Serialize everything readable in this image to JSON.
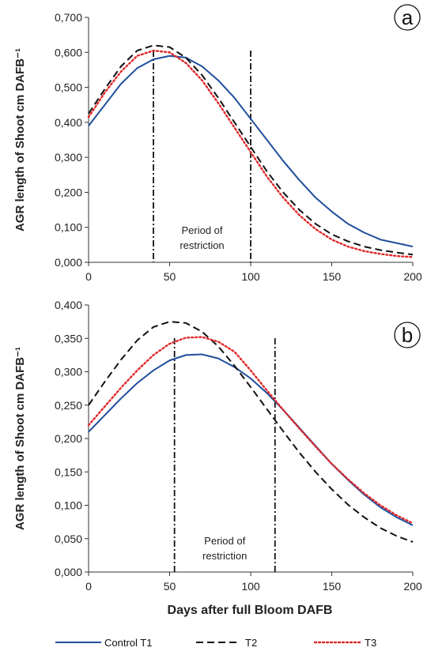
{
  "chart_data": [
    {
      "type": "line",
      "panel_label": "a",
      "ylabel": "AGR length of  Shoot cm DAFB⁻¹",
      "xlabel": "",
      "xlim": [
        0,
        200
      ],
      "ylim": [
        0,
        0.7
      ],
      "xticks": [
        0,
        50,
        100,
        150,
        200
      ],
      "yticks": [
        0,
        0.1,
        0.2,
        0.3,
        0.4,
        0.5,
        0.6,
        0.7
      ],
      "ytick_labels": [
        "0,000",
        "0,100",
        "0,200",
        "0,300",
        "0,400",
        "0,500",
        "0,600",
        "0,700"
      ],
      "vlines": [
        40,
        100
      ],
      "annotation": [
        "Period of",
        "restriction"
      ],
      "series": [
        {
          "name": "Control T1",
          "color": "#1f4e9c",
          "dash": "solid",
          "x": [
            0,
            10,
            20,
            30,
            40,
            50,
            60,
            70,
            80,
            90,
            100,
            110,
            120,
            130,
            140,
            150,
            160,
            170,
            180,
            190,
            200
          ],
          "y": [
            0.39,
            0.45,
            0.51,
            0.555,
            0.58,
            0.59,
            0.585,
            0.56,
            0.52,
            0.47,
            0.41,
            0.35,
            0.29,
            0.235,
            0.185,
            0.145,
            0.11,
            0.085,
            0.065,
            0.055,
            0.045
          ]
        },
        {
          "name": "T2",
          "color": "#111111",
          "dash": "dashed",
          "x": [
            0,
            10,
            20,
            30,
            40,
            50,
            60,
            70,
            80,
            90,
            100,
            110,
            120,
            130,
            140,
            150,
            160,
            170,
            180,
            190,
            200
          ],
          "y": [
            0.425,
            0.495,
            0.56,
            0.605,
            0.62,
            0.615,
            0.585,
            0.535,
            0.47,
            0.4,
            0.33,
            0.26,
            0.2,
            0.15,
            0.11,
            0.08,
            0.06,
            0.045,
            0.035,
            0.028,
            0.022
          ]
        },
        {
          "name": "T3",
          "color": "#e0282a",
          "dash": "dotted",
          "x": [
            0,
            10,
            20,
            30,
            40,
            50,
            60,
            70,
            80,
            90,
            100,
            110,
            120,
            130,
            140,
            150,
            160,
            170,
            180,
            190,
            200
          ],
          "y": [
            0.415,
            0.485,
            0.545,
            0.59,
            0.605,
            0.6,
            0.57,
            0.52,
            0.455,
            0.385,
            0.315,
            0.245,
            0.185,
            0.135,
            0.095,
            0.065,
            0.045,
            0.032,
            0.024,
            0.018,
            0.015
          ]
        }
      ]
    },
    {
      "type": "line",
      "panel_label": "b",
      "ylabel": "AGR length of  Shoot cm DAFB⁻¹",
      "xlabel": "Days after full Bloom DAFB",
      "xlim": [
        0,
        200
      ],
      "ylim": [
        0,
        0.4
      ],
      "xticks": [
        0,
        50,
        100,
        150,
        200
      ],
      "yticks": [
        0,
        0.05,
        0.1,
        0.15,
        0.2,
        0.25,
        0.3,
        0.35,
        0.4
      ],
      "ytick_labels": [
        "0,000",
        "0,050",
        "0,100",
        "0,150",
        "0,200",
        "0,250",
        "0,300",
        "0,350",
        "0,400"
      ],
      "vlines": [
        53,
        115
      ],
      "annotation": [
        "Period of",
        "restriction"
      ],
      "series": [
        {
          "name": "Control T1",
          "color": "#1f4e9c",
          "dash": "solid",
          "x": [
            0,
            10,
            20,
            30,
            40,
            50,
            60,
            70,
            80,
            90,
            100,
            110,
            120,
            130,
            140,
            150,
            160,
            170,
            180,
            190,
            200
          ],
          "y": [
            0.21,
            0.235,
            0.26,
            0.283,
            0.302,
            0.317,
            0.325,
            0.326,
            0.32,
            0.307,
            0.29,
            0.268,
            0.243,
            0.216,
            0.189,
            0.162,
            0.138,
            0.116,
            0.097,
            0.082,
            0.07
          ]
        },
        {
          "name": "T2",
          "color": "#111111",
          "dash": "dashed",
          "x": [
            0,
            10,
            20,
            30,
            40,
            50,
            60,
            70,
            80,
            90,
            100,
            110,
            120,
            130,
            140,
            150,
            160,
            170,
            180,
            190,
            200
          ],
          "y": [
            0.25,
            0.285,
            0.318,
            0.347,
            0.367,
            0.375,
            0.373,
            0.36,
            0.338,
            0.309,
            0.277,
            0.244,
            0.211,
            0.179,
            0.15,
            0.124,
            0.101,
            0.082,
            0.066,
            0.054,
            0.045
          ]
        },
        {
          "name": "T3",
          "color": "#e0282a",
          "dash": "dotted",
          "x": [
            0,
            10,
            20,
            30,
            40,
            50,
            60,
            70,
            80,
            90,
            100,
            110,
            120,
            130,
            140,
            150,
            160,
            170,
            180,
            190,
            200
          ],
          "y": [
            0.22,
            0.248,
            0.276,
            0.302,
            0.325,
            0.342,
            0.351,
            0.352,
            0.345,
            0.33,
            0.302,
            0.272,
            0.243,
            0.215,
            0.188,
            0.162,
            0.139,
            0.118,
            0.1,
            0.085,
            0.073
          ]
        }
      ]
    }
  ],
  "legend": [
    {
      "label": "Control T1",
      "color": "#1f4e9c",
      "dash": "solid"
    },
    {
      "label": "T2",
      "color": "#111111",
      "dash": "dashed"
    },
    {
      "label": "T3",
      "color": "#e0282a",
      "dash": "dotted"
    }
  ]
}
